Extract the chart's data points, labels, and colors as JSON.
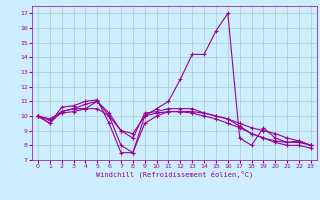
{
  "title": "",
  "xlabel": "Windchill (Refroidissement éolien,°C)",
  "ylabel": "",
  "background_color": "#cceeff",
  "line_color": "#990099",
  "grid_color": "#aacccc",
  "ylim": [
    7,
    17.5
  ],
  "xlim": [
    -0.5,
    23.5
  ],
  "yticks": [
    7,
    8,
    9,
    10,
    11,
    12,
    13,
    14,
    15,
    16,
    17
  ],
  "xticks": [
    0,
    1,
    2,
    3,
    4,
    5,
    6,
    7,
    8,
    9,
    10,
    11,
    12,
    13,
    14,
    15,
    16,
    17,
    18,
    19,
    20,
    21,
    22,
    23
  ],
  "series": [
    [
      10.0,
      9.5,
      10.6,
      10.7,
      11.0,
      11.1,
      9.5,
      7.5,
      7.5,
      10.0,
      10.5,
      11.0,
      12.5,
      14.2,
      14.2,
      15.8,
      17.0,
      8.5,
      8.0,
      9.2,
      8.5,
      8.2,
      8.3,
      8.0
    ],
    [
      10.0,
      9.5,
      10.3,
      10.5,
      10.5,
      11.0,
      10.0,
      8.0,
      7.5,
      9.5,
      10.0,
      10.3,
      10.3,
      10.3,
      10.2,
      10.0,
      9.8,
      9.5,
      9.2,
      9.0,
      8.8,
      8.5,
      8.3,
      8.0
    ],
    [
      10.0,
      9.8,
      10.3,
      10.5,
      10.8,
      11.0,
      10.2,
      9.0,
      8.5,
      10.2,
      10.3,
      10.5,
      10.5,
      10.5,
      10.2,
      10.0,
      9.8,
      9.3,
      8.8,
      8.5,
      8.3,
      8.2,
      8.2,
      8.0
    ],
    [
      10.0,
      9.7,
      10.2,
      10.3,
      10.5,
      10.5,
      10.0,
      9.0,
      8.8,
      10.0,
      10.2,
      10.3,
      10.3,
      10.2,
      10.0,
      9.8,
      9.5,
      9.2,
      8.8,
      8.5,
      8.2,
      8.0,
      8.0,
      7.8
    ]
  ]
}
